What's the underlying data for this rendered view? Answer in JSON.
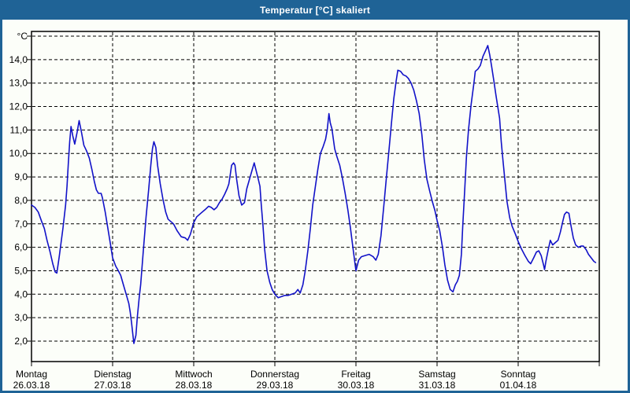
{
  "window": {
    "title": "Temperatur [°C] skaliert",
    "titlebar_color": "#1F6396",
    "background_color": "#FCFEF9",
    "text_color": "#000000"
  },
  "chart_data": {
    "type": "line",
    "title": "Temperatur [°C] skaliert",
    "grid": "dashed-black-on-white",
    "legend": "none",
    "line_color": "#1212C8",
    "y_axis": {
      "unit_label": "°C",
      "top_gridline_value": 15,
      "tick_values": [
        14,
        13,
        12,
        11,
        10,
        9,
        8,
        7,
        6,
        5,
        4,
        3,
        2
      ],
      "tick_labels": [
        "14,0",
        "13,0",
        "12,0",
        "11,0",
        "10,0",
        "9,0",
        "8,0",
        "7,0",
        "6,0",
        "5,0",
        "4,0",
        "3,0",
        "2,0"
      ],
      "ylim": [
        1.1,
        15.1
      ]
    },
    "x_axis": {
      "hours_total": 168,
      "hours_per_day": 24,
      "days": [
        {
          "name": "Montag",
          "date": "26.03.18"
        },
        {
          "name": "Dienstag",
          "date": "27.03.18"
        },
        {
          "name": "Mittwoch",
          "date": "28.03.18"
        },
        {
          "name": "Donnerstag",
          "date": "29.03.18"
        },
        {
          "name": "Freitag",
          "date": "30.03.18"
        },
        {
          "name": "Samstag",
          "date": "31.03.18"
        },
        {
          "name": "Sonntag",
          "date": "01.04.18"
        }
      ]
    },
    "series": [
      {
        "name": "Temperatur [°C]",
        "color": "#1212C8",
        "points_h_v": [
          [
            0,
            7.8
          ],
          [
            1,
            7.7
          ],
          [
            2,
            7.5
          ],
          [
            3,
            7.1
          ],
          [
            3.8,
            6.8
          ],
          [
            4.6,
            6.3
          ],
          [
            5.5,
            5.8
          ],
          [
            6.3,
            5.3
          ],
          [
            7,
            4.95
          ],
          [
            7.5,
            4.9
          ],
          [
            8.2,
            5.6
          ],
          [
            9.3,
            6.8
          ],
          [
            10.1,
            7.8
          ],
          [
            10.5,
            8.6
          ],
          [
            10.9,
            9.6
          ],
          [
            11.3,
            10.5
          ],
          [
            11.7,
            11.15
          ],
          [
            12.2,
            10.75
          ],
          [
            12.8,
            10.4
          ],
          [
            13.5,
            10.9
          ],
          [
            14.1,
            11.4
          ],
          [
            14.8,
            10.9
          ],
          [
            15.5,
            10.35
          ],
          [
            16.3,
            10.1
          ],
          [
            17.1,
            9.8
          ],
          [
            17.9,
            9.3
          ],
          [
            18.6,
            8.8
          ],
          [
            19.2,
            8.45
          ],
          [
            19.8,
            8.3
          ],
          [
            20.6,
            8.3
          ],
          [
            21,
            8.1
          ],
          [
            21.8,
            7.5
          ],
          [
            22.6,
            6.8
          ],
          [
            23.4,
            6.1
          ],
          [
            24,
            5.55
          ],
          [
            24.9,
            5.2
          ],
          [
            25.7,
            5
          ],
          [
            26.4,
            4.8
          ],
          [
            27.2,
            4.4
          ],
          [
            28,
            4
          ],
          [
            28.8,
            3.6
          ],
          [
            29.2,
            3.25
          ],
          [
            29.6,
            2.8
          ],
          [
            30,
            2.25
          ],
          [
            30.3,
            1.9
          ],
          [
            30.9,
            2.25
          ],
          [
            31.3,
            3
          ],
          [
            31.9,
            3.9
          ],
          [
            32.3,
            4.4
          ],
          [
            33.1,
            5.9
          ],
          [
            33.9,
            7.3
          ],
          [
            34.7,
            8.5
          ],
          [
            35.3,
            9.5
          ],
          [
            35.8,
            10.2
          ],
          [
            36.2,
            10.5
          ],
          [
            36.8,
            10.25
          ],
          [
            37.3,
            9.5
          ],
          [
            38.1,
            8.7
          ],
          [
            38.9,
            8.05
          ],
          [
            39.7,
            7.5
          ],
          [
            40.4,
            7.2
          ],
          [
            41.2,
            7.1
          ],
          [
            42,
            7
          ],
          [
            43.1,
            6.7
          ],
          [
            44.3,
            6.45
          ],
          [
            45.5,
            6.4
          ],
          [
            46.2,
            6.3
          ],
          [
            47,
            6.55
          ],
          [
            48,
            7.05
          ],
          [
            48.9,
            7.3
          ],
          [
            50.1,
            7.45
          ],
          [
            51.3,
            7.6
          ],
          [
            52.4,
            7.75
          ],
          [
            53.2,
            7.7
          ],
          [
            54,
            7.6
          ],
          [
            54.8,
            7.7
          ],
          [
            55.6,
            7.9
          ],
          [
            56.4,
            8.05
          ],
          [
            57.1,
            8.25
          ],
          [
            57.9,
            8.5
          ],
          [
            58.4,
            8.7
          ],
          [
            58.8,
            9.1
          ],
          [
            59.2,
            9.5
          ],
          [
            59.8,
            9.6
          ],
          [
            60.2,
            9.5
          ],
          [
            60.7,
            8.9
          ],
          [
            61.4,
            8.2
          ],
          [
            62.2,
            7.8
          ],
          [
            63,
            7.9
          ],
          [
            63.7,
            8.5
          ],
          [
            64.5,
            8.9
          ],
          [
            65.3,
            9.3
          ],
          [
            65.9,
            9.6
          ],
          [
            66.4,
            9.3
          ],
          [
            67.1,
            8.9
          ],
          [
            67.6,
            8.6
          ],
          [
            68,
            7.8
          ],
          [
            68.5,
            6.9
          ],
          [
            69,
            5.9
          ],
          [
            69.7,
            5
          ],
          [
            70.5,
            4.5
          ],
          [
            71.2,
            4.2
          ],
          [
            72,
            4
          ],
          [
            73,
            3.85
          ],
          [
            74,
            3.9
          ],
          [
            75,
            3.95
          ],
          [
            76,
            3.95
          ],
          [
            77,
            4
          ],
          [
            78,
            4.05
          ],
          [
            78.8,
            4.2
          ],
          [
            79.5,
            4.05
          ],
          [
            80.3,
            4.4
          ],
          [
            81,
            5
          ],
          [
            81.8,
            5.9
          ],
          [
            82.5,
            6.8
          ],
          [
            83.2,
            7.8
          ],
          [
            84,
            8.6
          ],
          [
            84.7,
            9.3
          ],
          [
            85.5,
            10
          ],
          [
            86.3,
            10.3
          ],
          [
            87,
            10.6
          ],
          [
            87.5,
            11
          ],
          [
            88,
            11.7
          ],
          [
            88.4,
            11.3
          ],
          [
            88.9,
            11.05
          ],
          [
            89.7,
            10.2
          ],
          [
            90.3,
            9.9
          ],
          [
            91.2,
            9.5
          ],
          [
            92,
            8.95
          ],
          [
            92.8,
            8.3
          ],
          [
            93.6,
            7.6
          ],
          [
            94.4,
            6.8
          ],
          [
            95.1,
            6
          ],
          [
            96,
            5
          ],
          [
            96.8,
            5.45
          ],
          [
            97.6,
            5.6
          ],
          [
            98.7,
            5.65
          ],
          [
            99.9,
            5.7
          ],
          [
            101.1,
            5.6
          ],
          [
            101.9,
            5.45
          ],
          [
            102.6,
            5.7
          ],
          [
            103.4,
            6.5
          ],
          [
            104.2,
            7.7
          ],
          [
            105,
            8.95
          ],
          [
            105.8,
            10.2
          ],
          [
            106.5,
            11.3
          ],
          [
            107.2,
            12.35
          ],
          [
            107.9,
            13.1
          ],
          [
            108.4,
            13.55
          ],
          [
            109.2,
            13.5
          ],
          [
            110,
            13.35
          ],
          [
            110.8,
            13.3
          ],
          [
            111.5,
            13.2
          ],
          [
            112.3,
            13
          ],
          [
            113.1,
            12.7
          ],
          [
            113.9,
            12.25
          ],
          [
            114.7,
            11.7
          ],
          [
            115.5,
            10.8
          ],
          [
            116.2,
            9.75
          ],
          [
            117,
            8.9
          ],
          [
            117.8,
            8.4
          ],
          [
            118.6,
            7.95
          ],
          [
            119.4,
            7.55
          ],
          [
            120,
            7.15
          ],
          [
            120.8,
            6.7
          ],
          [
            121.6,
            6
          ],
          [
            122.3,
            5.25
          ],
          [
            123.1,
            4.6
          ],
          [
            123.9,
            4.2
          ],
          [
            124.7,
            4.1
          ],
          [
            125.4,
            4.4
          ],
          [
            126,
            4.55
          ],
          [
            126.6,
            4.8
          ],
          [
            127.2,
            5.7
          ],
          [
            127.6,
            6.9
          ],
          [
            128.2,
            8.5
          ],
          [
            128.7,
            9.85
          ],
          [
            129.3,
            11
          ],
          [
            130.1,
            12.1
          ],
          [
            130.9,
            13
          ],
          [
            131.3,
            13.5
          ],
          [
            132.1,
            13.6
          ],
          [
            132.8,
            13.75
          ],
          [
            133.6,
            14.15
          ],
          [
            134.4,
            14.4
          ],
          [
            135,
            14.6
          ],
          [
            135.6,
            14.2
          ],
          [
            136.1,
            13.75
          ],
          [
            136.8,
            13.1
          ],
          [
            137.4,
            12.5
          ],
          [
            137.9,
            12.05
          ],
          [
            138.5,
            11.5
          ],
          [
            139,
            10.5
          ],
          [
            139.5,
            9.7
          ],
          [
            140.1,
            8.8
          ],
          [
            140.7,
            7.95
          ],
          [
            141.5,
            7.25
          ],
          [
            142.2,
            6.9
          ],
          [
            143.2,
            6.55
          ],
          [
            144,
            6.25
          ],
          [
            144.9,
            5.95
          ],
          [
            146,
            5.65
          ],
          [
            147,
            5.4
          ],
          [
            147.7,
            5.3
          ],
          [
            148.6,
            5.55
          ],
          [
            149.4,
            5.8
          ],
          [
            150.1,
            5.85
          ],
          [
            150.8,
            5.65
          ],
          [
            151.5,
            5.25
          ],
          [
            151.8,
            5.05
          ],
          [
            152.2,
            5.4
          ],
          [
            152.9,
            5.9
          ],
          [
            153.5,
            6.3
          ],
          [
            154.2,
            6.1
          ],
          [
            155,
            6.2
          ],
          [
            155.8,
            6.3
          ],
          [
            156.5,
            6.65
          ],
          [
            157.2,
            7.1
          ],
          [
            157.7,
            7.4
          ],
          [
            158.3,
            7.5
          ],
          [
            159,
            7.45
          ],
          [
            159.6,
            6.95
          ],
          [
            160.3,
            6.4
          ],
          [
            161,
            6.1
          ],
          [
            161.8,
            6
          ],
          [
            162.6,
            6.05
          ],
          [
            163.3,
            6.05
          ],
          [
            164.1,
            5.9
          ],
          [
            164.8,
            5.7
          ],
          [
            165.6,
            5.55
          ],
          [
            166.4,
            5.4
          ],
          [
            166.9,
            5.35
          ]
        ]
      }
    ]
  }
}
